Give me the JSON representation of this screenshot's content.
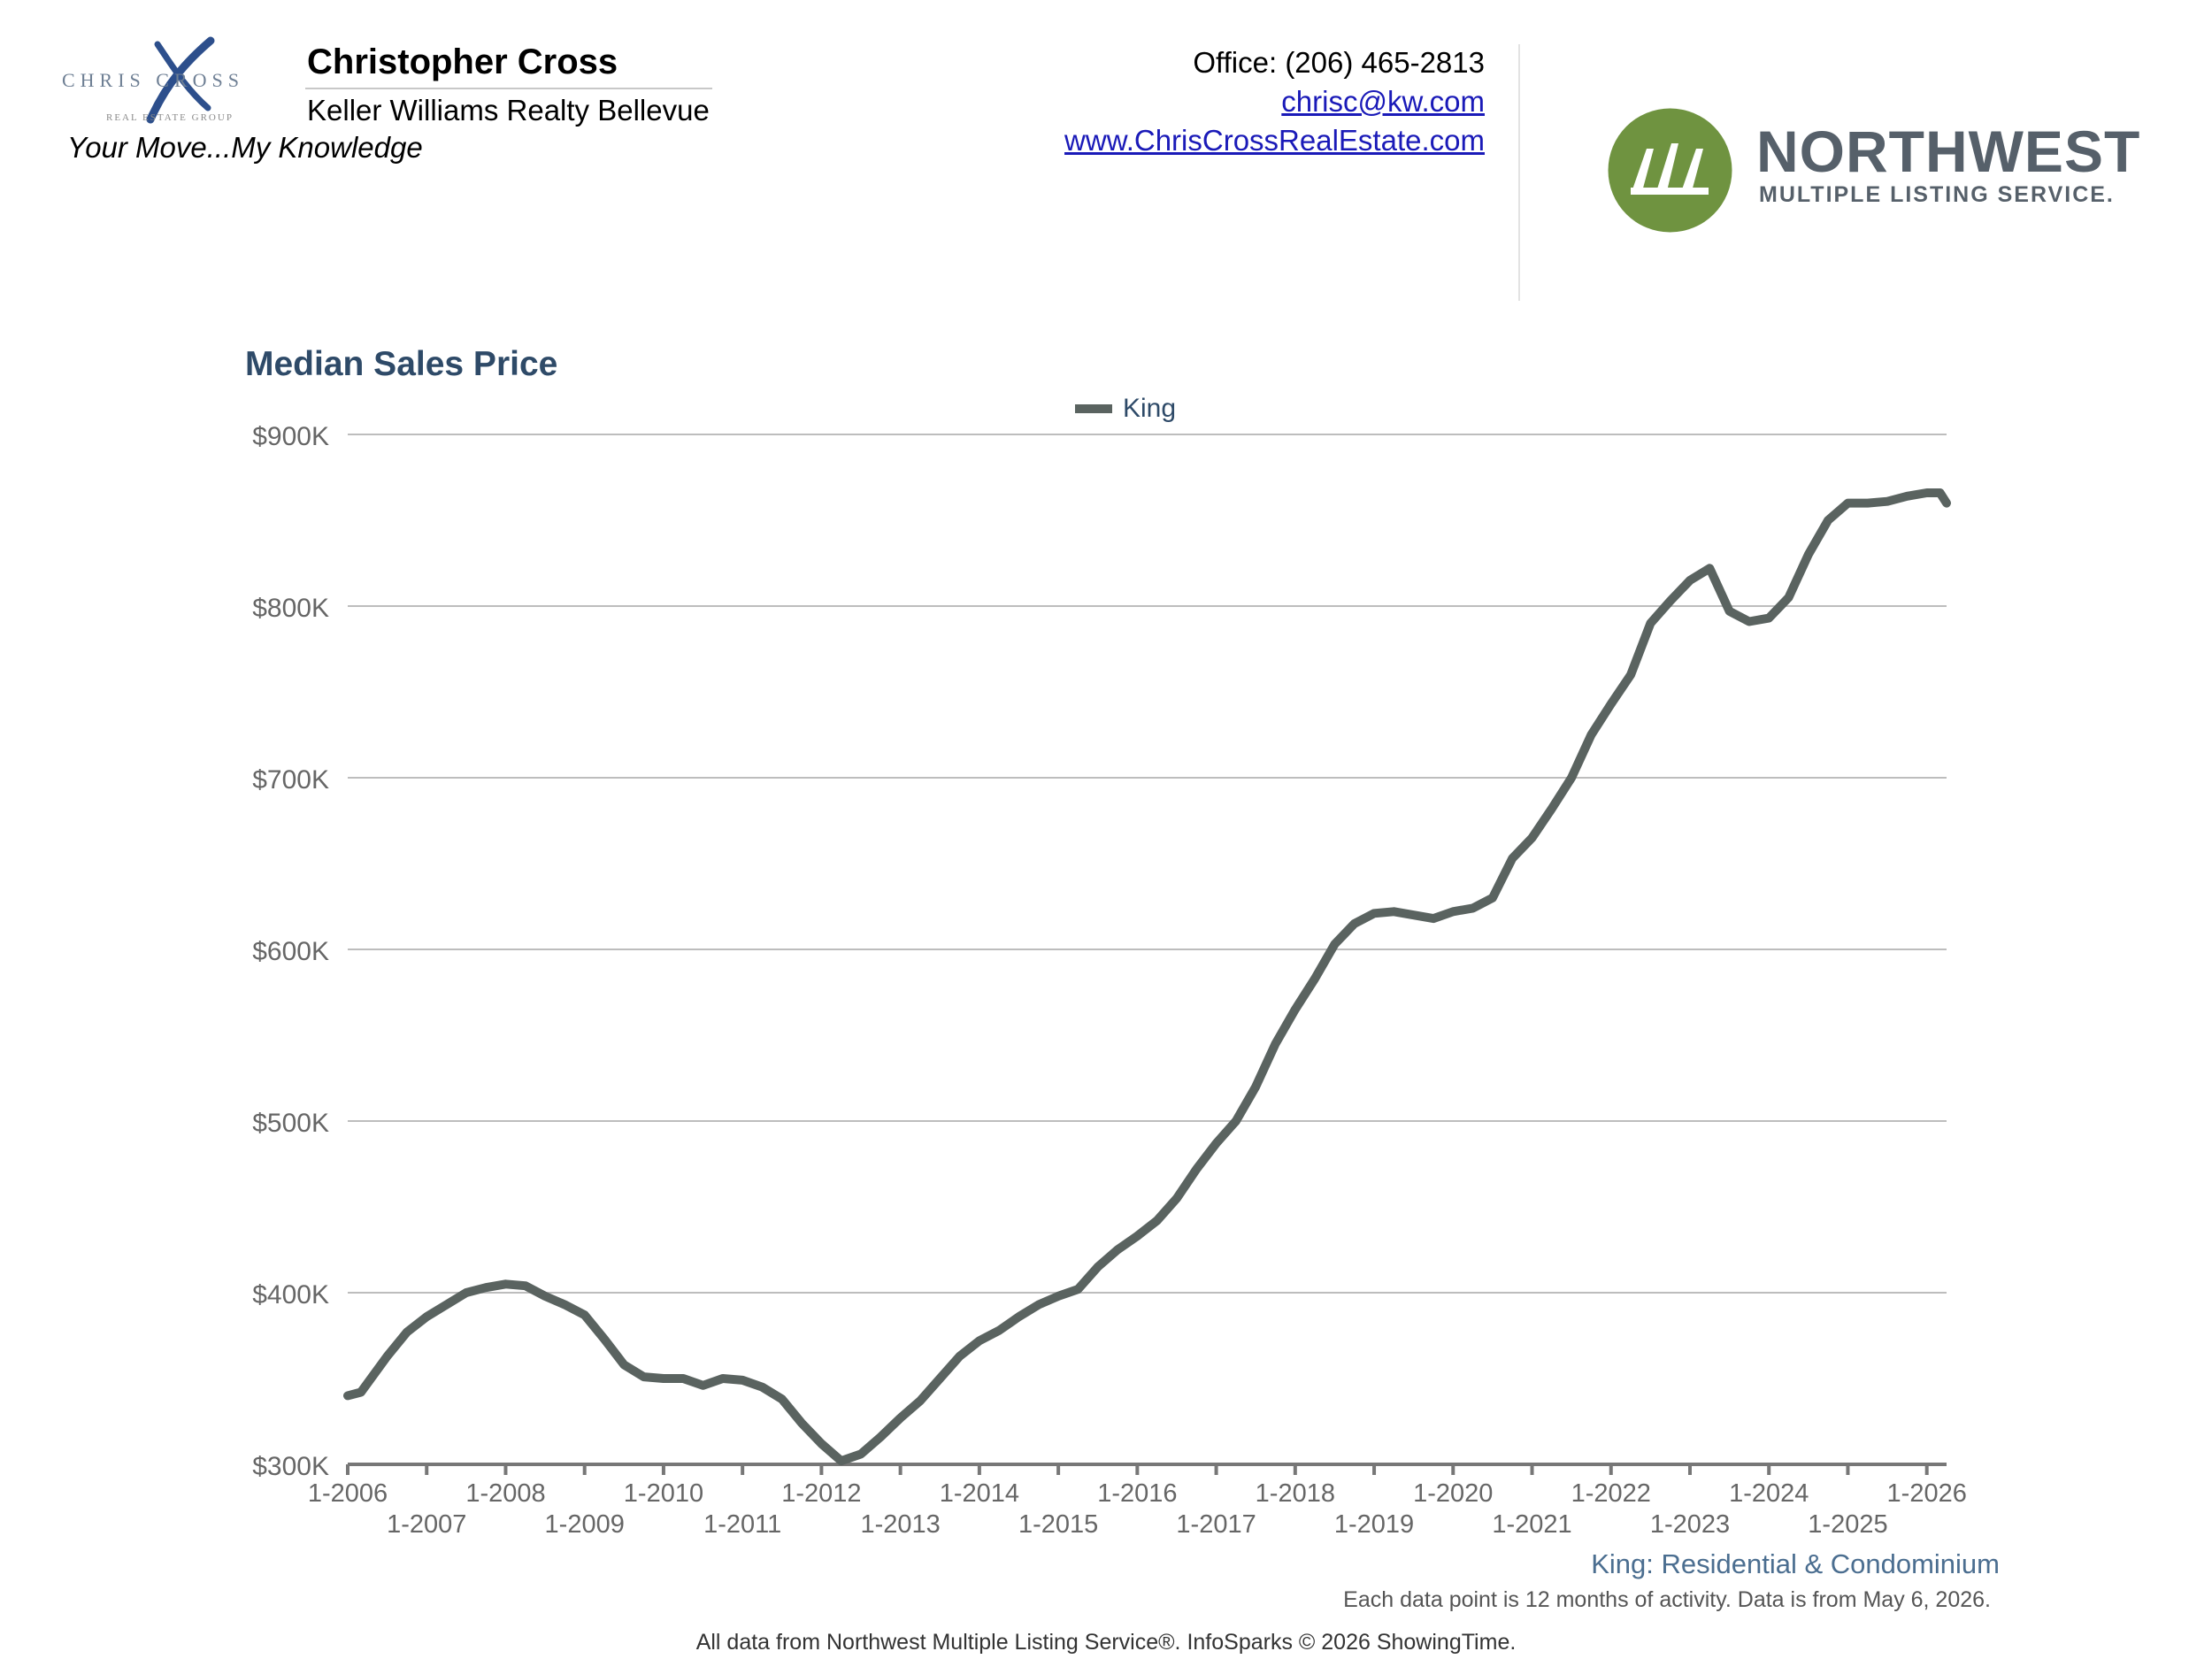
{
  "header": {
    "brand_logo_top": "CHRIS CROSS",
    "brand_logo_bottom": "REAL ESTATE GROUP",
    "agent_name": "Christopher Cross",
    "company": "Keller Williams Realty Bellevue",
    "tagline": "Your Move...My Knowledge",
    "phone": "Office: (206) 465-2813",
    "email": "chrisc@kw.com",
    "website": "www.ChrisCrossRealEstate.com",
    "nwmls_title": "NORTHWEST",
    "nwmls_subtitle": "MULTIPLE LISTING SERVICE."
  },
  "colors": {
    "line": "#5a6360",
    "title": "#2e4a68",
    "grid": "#bdbdbd",
    "nwmls_green": "#6f9340",
    "brand_blue": "#2d4f8c"
  },
  "chart_data": {
    "type": "line",
    "title": "Median Sales Price",
    "legend": [
      "King"
    ],
    "legend_position": "top-center",
    "grid": true,
    "y_ticks": [
      "$300K",
      "$400K",
      "$500K",
      "$600K",
      "$700K",
      "$800K",
      "$900K"
    ],
    "ylim": [
      300000,
      900000
    ],
    "x_ticks_top": [
      "1-2006",
      "1-2008",
      "1-2010",
      "1-2012",
      "1-2014",
      "1-2016",
      "1-2018",
      "1-2020",
      "1-2022",
      "1-2024",
      "1-2026"
    ],
    "x_ticks_bottom": [
      "1-2007",
      "1-2009",
      "1-2011",
      "1-2013",
      "1-2015",
      "1-2017",
      "1-2019",
      "1-2021",
      "1-2023",
      "1-2025"
    ],
    "xlim": [
      "2006-01",
      "2026-04"
    ],
    "series": [
      {
        "name": "King",
        "points": [
          [
            "2006-01",
            340000
          ],
          [
            "2006-03",
            342000
          ],
          [
            "2006-07",
            363000
          ],
          [
            "2006-10",
            377000
          ],
          [
            "2007-01",
            386000
          ],
          [
            "2007-04",
            393000
          ],
          [
            "2007-07",
            400000
          ],
          [
            "2007-10",
            403000
          ],
          [
            "2008-01",
            405000
          ],
          [
            "2008-04",
            404000
          ],
          [
            "2008-07",
            398000
          ],
          [
            "2008-10",
            393000
          ],
          [
            "2009-01",
            387000
          ],
          [
            "2009-04",
            373000
          ],
          [
            "2009-07",
            358000
          ],
          [
            "2009-10",
            351000
          ],
          [
            "2010-01",
            350000
          ],
          [
            "2010-04",
            350000
          ],
          [
            "2010-07",
            346000
          ],
          [
            "2010-10",
            350000
          ],
          [
            "2011-01",
            349000
          ],
          [
            "2011-04",
            345000
          ],
          [
            "2011-07",
            338000
          ],
          [
            "2011-10",
            324000
          ],
          [
            "2012-01",
            312000
          ],
          [
            "2012-04",
            302000
          ],
          [
            "2012-07",
            306000
          ],
          [
            "2012-10",
            316000
          ],
          [
            "2013-01",
            327000
          ],
          [
            "2013-04",
            337000
          ],
          [
            "2013-07",
            350000
          ],
          [
            "2013-10",
            363000
          ],
          [
            "2014-01",
            372000
          ],
          [
            "2014-04",
            378000
          ],
          [
            "2014-07",
            386000
          ],
          [
            "2014-10",
            393000
          ],
          [
            "2015-01",
            398000
          ],
          [
            "2015-04",
            402000
          ],
          [
            "2015-07",
            415000
          ],
          [
            "2015-10",
            425000
          ],
          [
            "2016-01",
            433000
          ],
          [
            "2016-04",
            442000
          ],
          [
            "2016-07",
            455000
          ],
          [
            "2016-10",
            472000
          ],
          [
            "2017-01",
            487000
          ],
          [
            "2017-04",
            500000
          ],
          [
            "2017-07",
            520000
          ],
          [
            "2017-10",
            545000
          ],
          [
            "2018-01",
            565000
          ],
          [
            "2018-04",
            583000
          ],
          [
            "2018-07",
            603000
          ],
          [
            "2018-10",
            615000
          ],
          [
            "2019-01",
            621000
          ],
          [
            "2019-04",
            622000
          ],
          [
            "2019-07",
            620000
          ],
          [
            "2019-10",
            618000
          ],
          [
            "2020-01",
            622000
          ],
          [
            "2020-04",
            624000
          ],
          [
            "2020-07",
            630000
          ],
          [
            "2020-10",
            653000
          ],
          [
            "2021-01",
            665000
          ],
          [
            "2021-04",
            682000
          ],
          [
            "2021-07",
            700000
          ],
          [
            "2021-10",
            725000
          ],
          [
            "2022-01",
            743000
          ],
          [
            "2022-04",
            760000
          ],
          [
            "2022-07",
            790000
          ],
          [
            "2022-10",
            803000
          ],
          [
            "2023-01",
            815000
          ],
          [
            "2023-04",
            822000
          ],
          [
            "2023-07",
            797000
          ],
          [
            "2023-10",
            791000
          ],
          [
            "2024-01",
            793000
          ],
          [
            "2024-04",
            805000
          ],
          [
            "2024-07",
            830000
          ],
          [
            "2024-10",
            850000
          ],
          [
            "2025-01",
            860000
          ],
          [
            "2025-04",
            860000
          ],
          [
            "2025-07",
            861000
          ],
          [
            "2025-10",
            864000
          ],
          [
            "2026-01",
            866000
          ],
          [
            "2026-03",
            866000
          ],
          [
            "2026-04",
            860000
          ]
        ]
      }
    ]
  },
  "notes": {
    "subtitle": "King: Residential & Condominium",
    "data_note": "Each data point is 12 months of activity. Data is from May 6, 2026.",
    "footer": "All data from Northwest Multiple Listing Service®. InfoSparks © 2026 ShowingTime."
  }
}
